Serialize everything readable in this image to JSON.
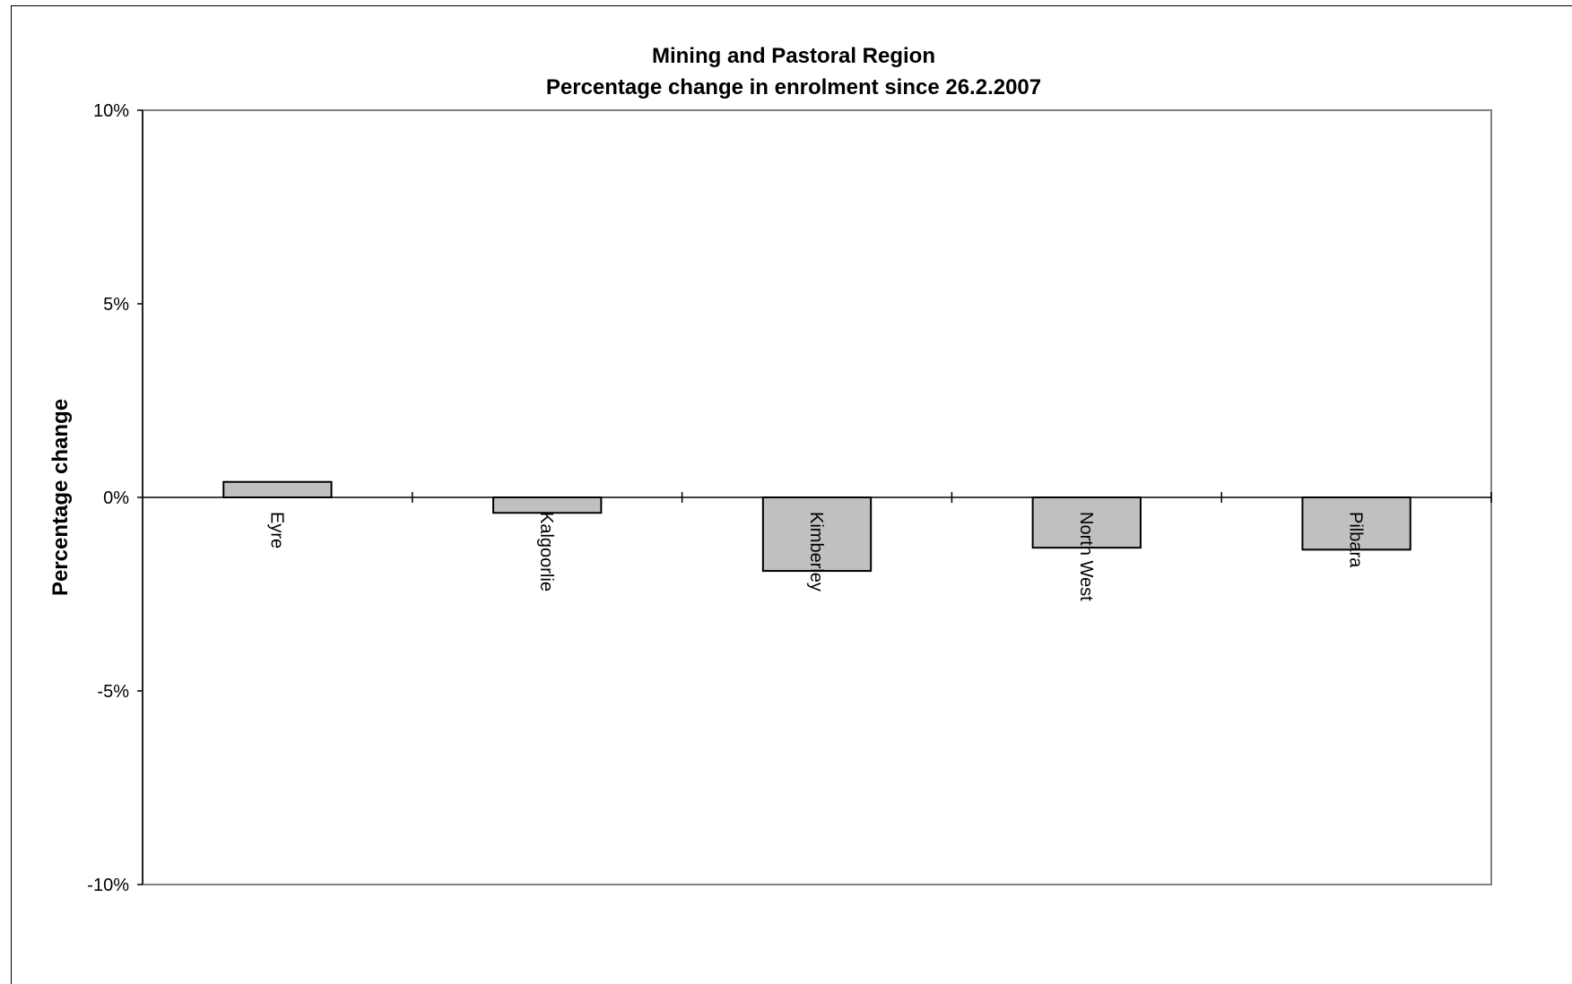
{
  "chart_data": {
    "type": "bar",
    "title": "Mining and Pastoral Region",
    "subtitle": "Percentage change in enrolment since 26.2.2007",
    "xlabel": "",
    "ylabel": "Percentage change",
    "categories": [
      "Eyre",
      "Kalgoorlie",
      "Kimberley",
      "North West",
      "Pilbara"
    ],
    "series": [
      {
        "values": [
          0.4,
          -0.4,
          -1.9,
          -1.3,
          -1.35
        ]
      }
    ],
    "ylim": [
      -10,
      10
    ],
    "yticks": [
      10,
      5,
      0,
      -5,
      -10
    ],
    "ytick_labels": [
      "10%",
      "5%",
      "0%",
      "-5%",
      "-10%"
    ],
    "grid": false,
    "legend": "none",
    "colors": {
      "bar_fill": "#c0c0c0",
      "bar_stroke": "#000000",
      "frame": "#808080",
      "axis": "#000000"
    }
  }
}
